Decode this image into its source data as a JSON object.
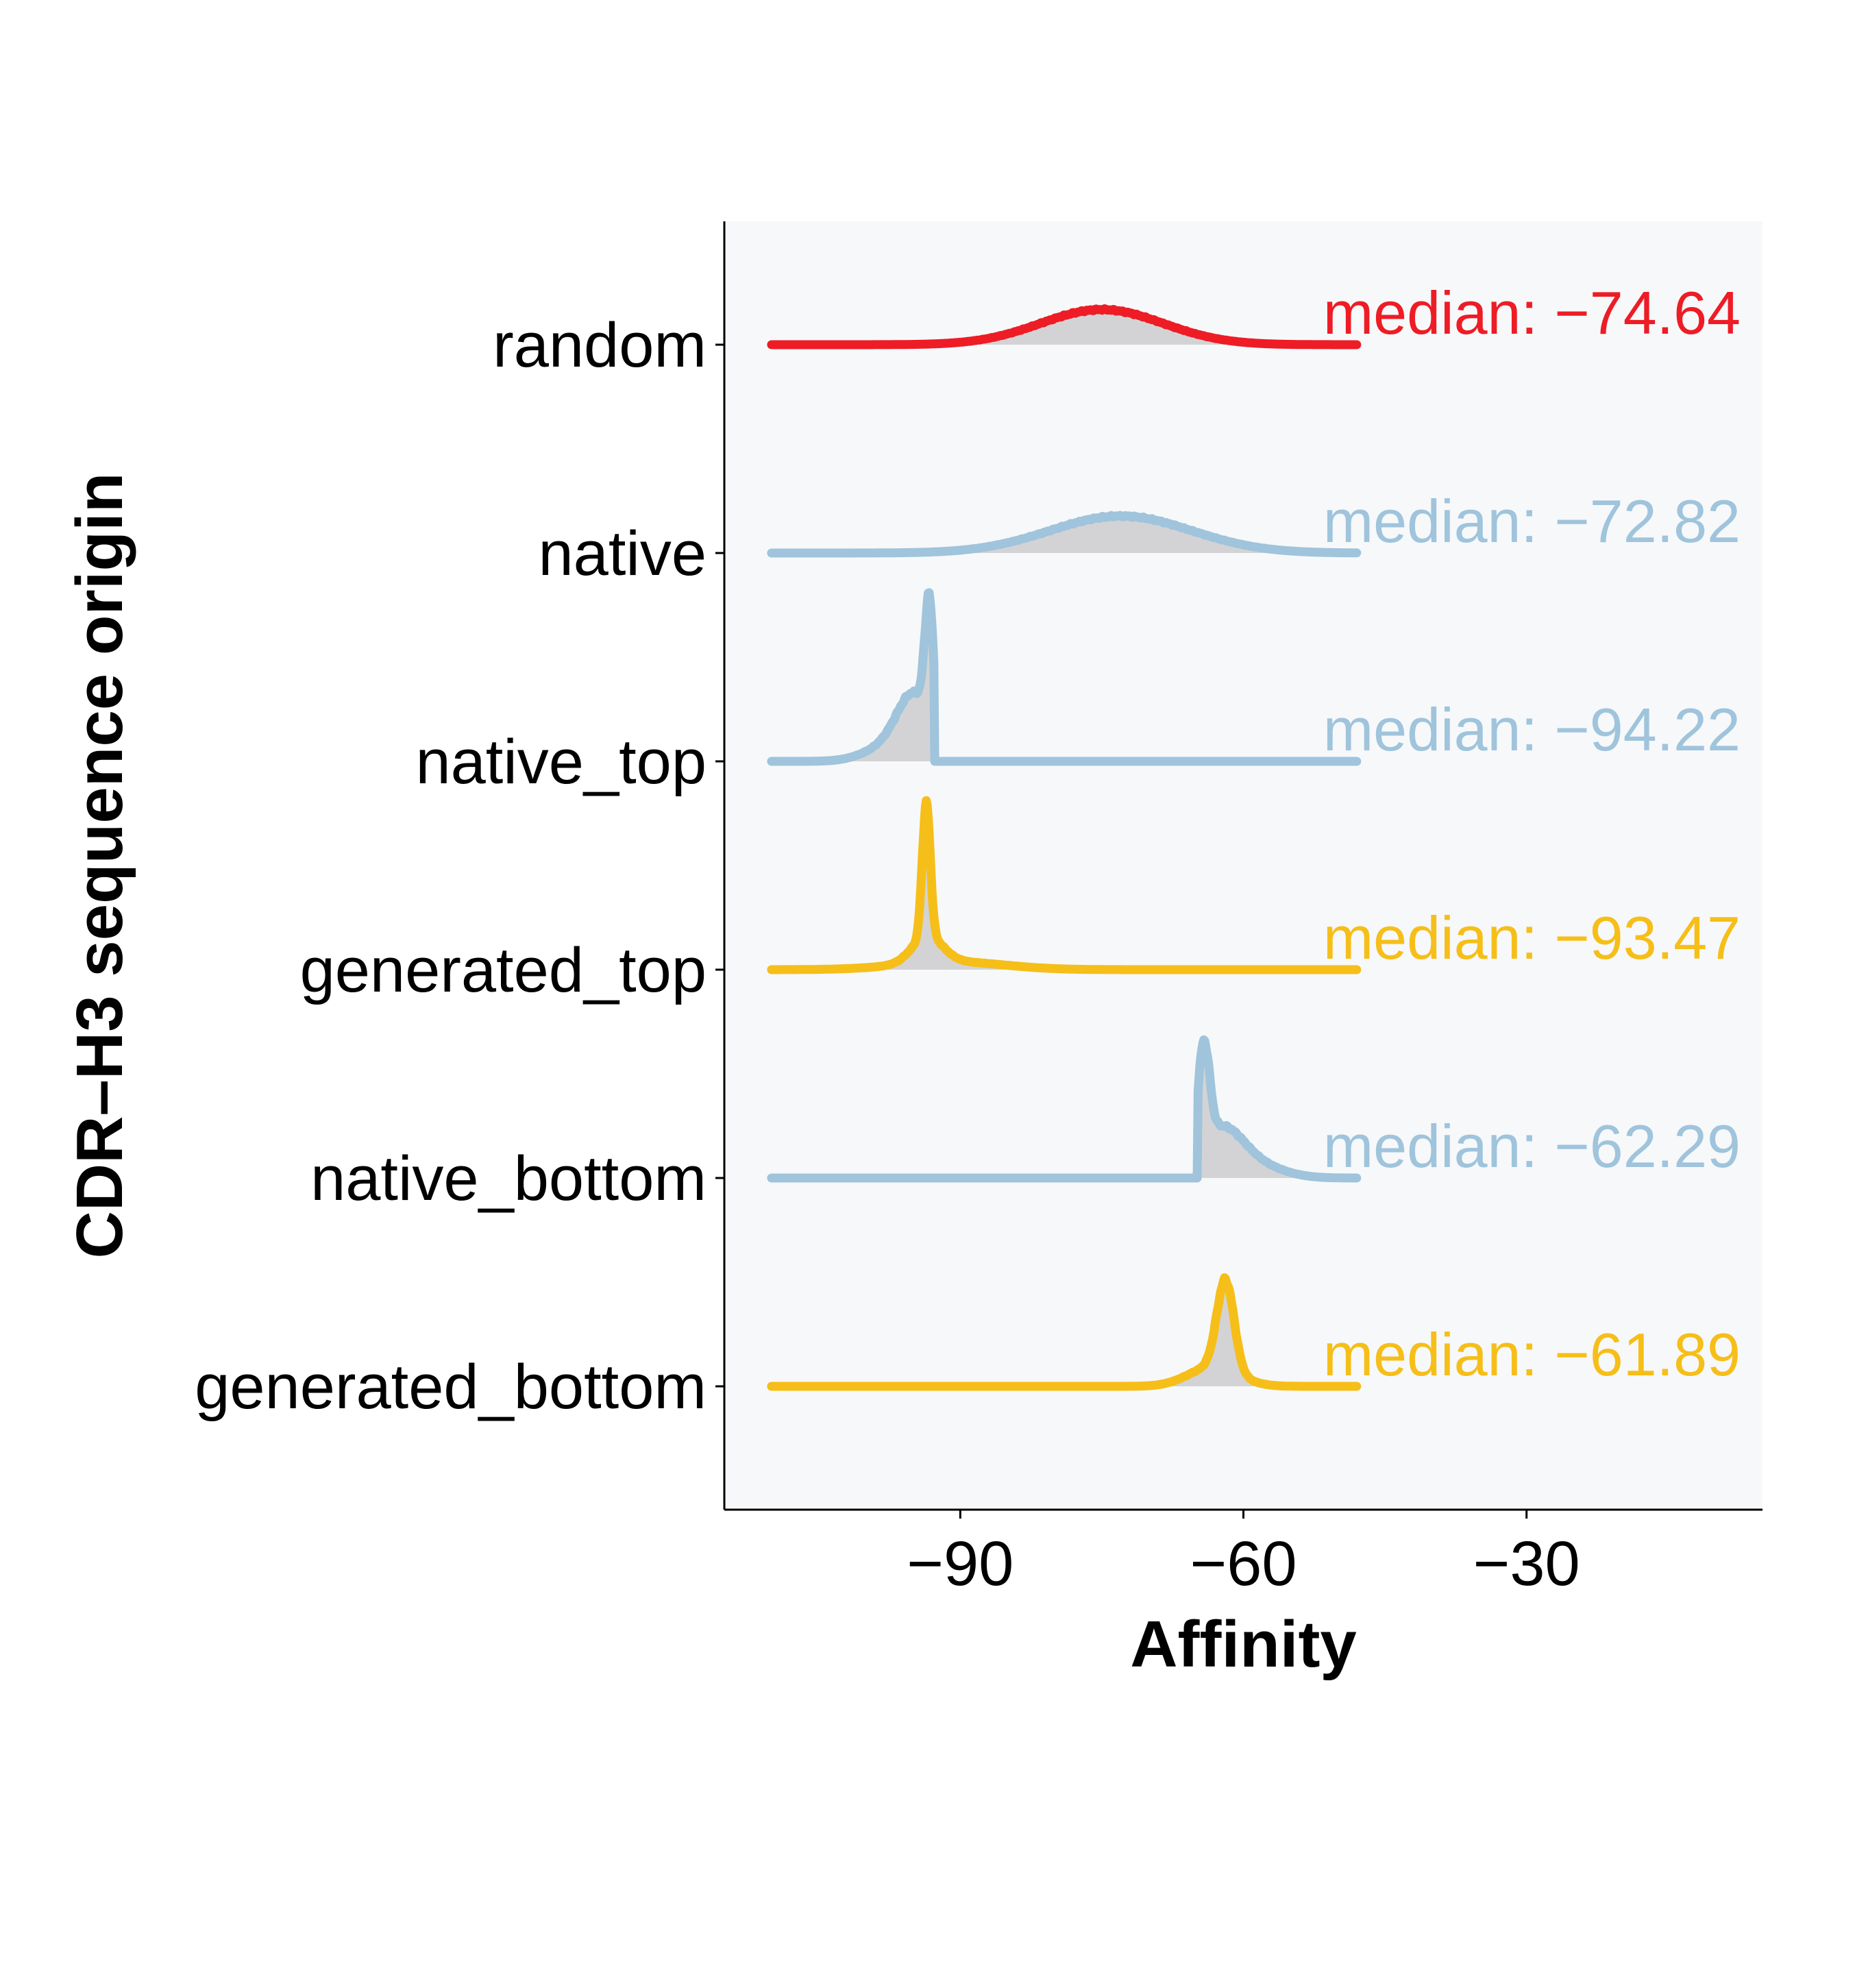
{
  "chart_data": {
    "type": "ridgeline-density",
    "xlabel": "Affinity",
    "ylabel": "CDR–H3 sequence origin",
    "x_ticks": [
      -90,
      -60,
      -30
    ],
    "x_tick_labels": [
      "−90",
      "−60",
      "−30"
    ],
    "xlim": [
      -115,
      -5
    ],
    "x_data_range": [
      -110,
      -48
    ],
    "panel_background": "#f7f8fa",
    "fill_color": "#d3d3d5",
    "series": [
      {
        "name": "random",
        "color": "#ee1c25",
        "median_label": "median: −74.64",
        "peak_height": 0.38,
        "components": [
          {
            "center": -75,
            "sigma": 6.5,
            "weight": 1.0
          }
        ]
      },
      {
        "name": "native",
        "color": "#9fc4dc",
        "median_label": "median: −72.82",
        "peak_height": 0.4,
        "components": [
          {
            "center": -73,
            "sigma": 7.5,
            "weight": 1.0
          }
        ]
      },
      {
        "name": "native_top",
        "color": "#9fc4dc",
        "median_label": "median: −94.22",
        "peak_height": 1.8,
        "cutoff_above": -92.8,
        "components": [
          {
            "center": -93.3,
            "sigma": 0.45,
            "weight": 1.0
          },
          {
            "center": -94.8,
            "sigma": 1.8,
            "weight": 0.5
          },
          {
            "center": -97.5,
            "sigma": 2.6,
            "weight": 0.12
          }
        ]
      },
      {
        "name": "generated_top",
        "color": "#f6be18",
        "median_label": "median: −93.47",
        "peak_height": 1.8,
        "components": [
          {
            "center": -93.6,
            "sigma": 0.42,
            "weight": 1.0
          },
          {
            "center": -93.5,
            "sigma": 1.6,
            "weight": 0.2
          },
          {
            "center": -91.0,
            "sigma": 5.5,
            "weight": 0.06
          }
        ]
      },
      {
        "name": "native_bottom",
        "color": "#9fc4dc",
        "median_label": "median: −62.29",
        "peak_height": 1.48,
        "cutoff_below": -64.8,
        "components": [
          {
            "center": -64.2,
            "sigma": 0.6,
            "weight": 1.0
          },
          {
            "center": -62.5,
            "sigma": 2.3,
            "weight": 0.45
          },
          {
            "center": -59.0,
            "sigma": 3.0,
            "weight": 0.13
          }
        ]
      },
      {
        "name": "generated_bottom",
        "color": "#f6be18",
        "median_label": "median: −61.89",
        "peak_height": 1.15,
        "components": [
          {
            "center": -61.9,
            "sigma": 0.9,
            "weight": 1.0
          },
          {
            "center": -63.2,
            "sigma": 2.6,
            "weight": 0.22
          }
        ]
      }
    ]
  }
}
